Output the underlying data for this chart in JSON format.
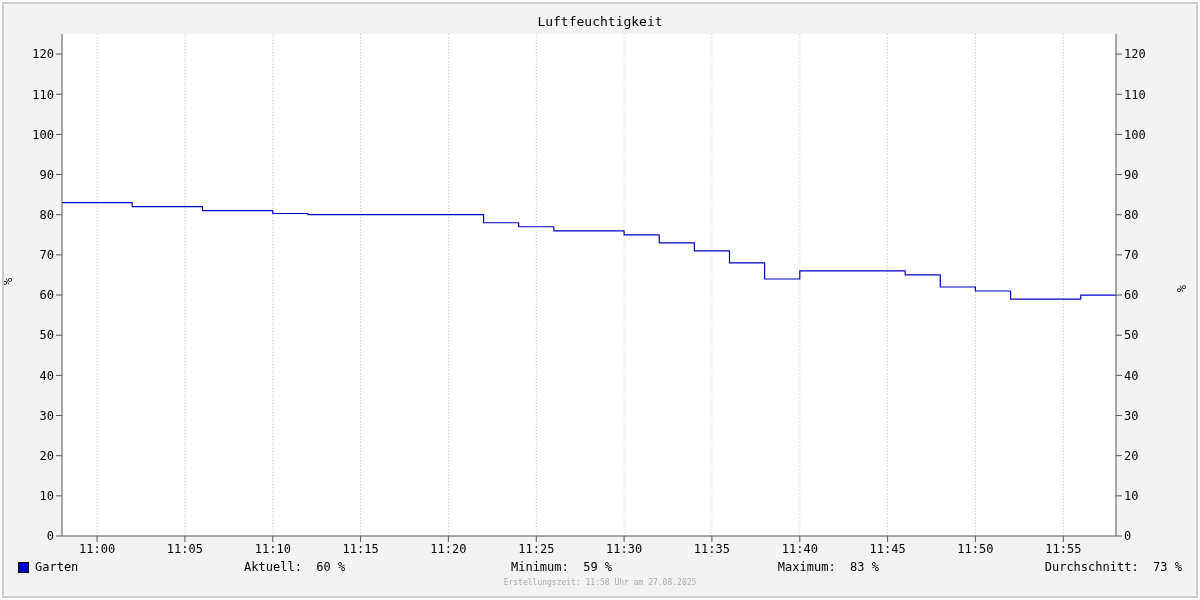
{
  "chart_data": {
    "type": "step",
    "title": "Luftfeuchtigkeit",
    "ylabel": "%",
    "y2label": "%",
    "x": [
      10.9667,
      11.0333,
      11.1,
      11.1667,
      11.2,
      11.3667,
      11.4,
      11.4333,
      11.5,
      11.5333,
      11.5667,
      11.6,
      11.6333,
      11.6667,
      11.7667,
      11.8,
      11.8333,
      11.8667,
      11.9333,
      11.9667
    ],
    "series": [
      {
        "name": "Garten",
        "color": "#0000cc",
        "values": [
          83,
          82,
          81,
          80.3,
          80,
          78,
          77,
          76,
          75,
          73,
          71,
          68,
          64,
          66,
          65,
          62,
          61,
          59,
          60,
          60
        ]
      }
    ],
    "xlim": [
      10.9667,
      11.9667
    ],
    "xticks": [
      {
        "value": 11,
        "label": "11:00"
      },
      {
        "value": 11.0833,
        "label": "11:05"
      },
      {
        "value": 11.1667,
        "label": "11:10"
      },
      {
        "value": 11.25,
        "label": "11:15"
      },
      {
        "value": 11.3333,
        "label": "11:20"
      },
      {
        "value": 11.4167,
        "label": "11:25"
      },
      {
        "value": 11.5,
        "label": "11:30"
      },
      {
        "value": 11.5833,
        "label": "11:35"
      },
      {
        "value": 11.6667,
        "label": "11:40"
      },
      {
        "value": 11.75,
        "label": "11:45"
      },
      {
        "value": 11.8333,
        "label": "11:50"
      },
      {
        "value": 11.9167,
        "label": "11:55"
      }
    ],
    "ylim": [
      0,
      125
    ],
    "yticks": [
      0,
      10,
      20,
      30,
      40,
      50,
      60,
      70,
      80,
      90,
      100,
      110,
      120
    ],
    "y2lim": [
      0,
      125
    ],
    "y2ticks": [
      0,
      10,
      20,
      30,
      40,
      50,
      60,
      70,
      80,
      90,
      100,
      110,
      120
    ],
    "grid": true,
    "legend": "bottom left",
    "annotations": [
      "Aktuell:  60 %",
      "Minimum:  59 %",
      "Maximum:  83 %",
      "Durchschnitt:  73 %",
      "Erstellungszeit: 11:58 Uhr am 27.08.2025"
    ]
  }
}
